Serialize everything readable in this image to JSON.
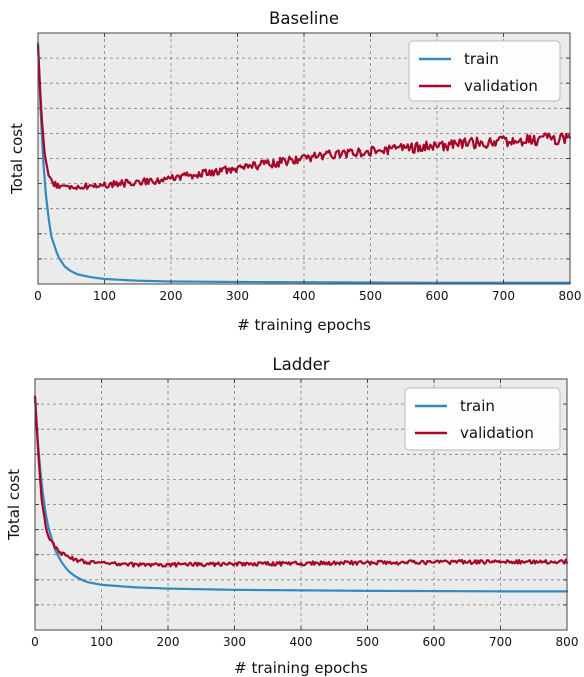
{
  "chart_data": [
    {
      "type": "line",
      "title": "Baseline",
      "xlabel": "# training epochs",
      "ylabel": "Total cost",
      "xlim": [
        0,
        800
      ],
      "ylim": [
        0,
        1
      ],
      "xticks": [
        0,
        100,
        200,
        300,
        400,
        500,
        600,
        700,
        800
      ],
      "yticks_labeled": false,
      "y_gridlines": 10,
      "grid": true,
      "legend": "top-right",
      "series": [
        {
          "name": "train",
          "color": "#348abd",
          "x": [
            0,
            5,
            10,
            15,
            20,
            30,
            40,
            50,
            60,
            80,
            100,
            150,
            200,
            300,
            400,
            500,
            600,
            700,
            800
          ],
          "y": [
            0.96,
            0.62,
            0.4,
            0.28,
            0.19,
            0.11,
            0.07,
            0.05,
            0.038,
            0.027,
            0.02,
            0.013,
            0.01,
            0.008,
            0.007,
            0.006,
            0.005,
            0.005,
            0.005
          ]
        },
        {
          "name": "validation",
          "color": "#a60628",
          "x": [
            0,
            5,
            10,
            15,
            20,
            30,
            40,
            50,
            75,
            100,
            150,
            200,
            250,
            300,
            350,
            400,
            450,
            500,
            550,
            600,
            650,
            700,
            750,
            800
          ],
          "y": [
            0.95,
            0.68,
            0.52,
            0.44,
            0.41,
            0.39,
            0.385,
            0.385,
            0.39,
            0.395,
            0.405,
            0.42,
            0.44,
            0.46,
            0.48,
            0.5,
            0.52,
            0.53,
            0.54,
            0.55,
            0.56,
            0.57,
            0.575,
            0.58
          ]
        }
      ]
    },
    {
      "type": "line",
      "title": "Ladder",
      "xlabel": "# training epochs",
      "ylabel": "Total cost",
      "xlim": [
        0,
        800
      ],
      "ylim": [
        0,
        1
      ],
      "xticks": [
        0,
        100,
        200,
        300,
        400,
        500,
        600,
        700,
        800
      ],
      "yticks_labeled": false,
      "y_gridlines": 10,
      "grid": true,
      "legend": "top-right",
      "series": [
        {
          "name": "train",
          "color": "#348abd",
          "x": [
            0,
            5,
            10,
            15,
            20,
            30,
            40,
            50,
            60,
            70,
            80,
            100,
            150,
            200,
            300,
            400,
            500,
            600,
            700,
            800
          ],
          "y": [
            0.93,
            0.72,
            0.58,
            0.48,
            0.41,
            0.32,
            0.27,
            0.235,
            0.215,
            0.2,
            0.19,
            0.18,
            0.17,
            0.165,
            0.16,
            0.158,
            0.156,
            0.155,
            0.154,
            0.154
          ]
        },
        {
          "name": "validation",
          "color": "#a60628",
          "x": [
            0,
            5,
            10,
            15,
            20,
            30,
            40,
            50,
            60,
            80,
            100,
            150,
            200,
            300,
            400,
            500,
            600,
            700,
            800
          ],
          "y": [
            0.93,
            0.7,
            0.52,
            0.43,
            0.375,
            0.33,
            0.305,
            0.29,
            0.28,
            0.27,
            0.265,
            0.26,
            0.26,
            0.262,
            0.265,
            0.268,
            0.27,
            0.272,
            0.272
          ]
        }
      ]
    }
  ]
}
